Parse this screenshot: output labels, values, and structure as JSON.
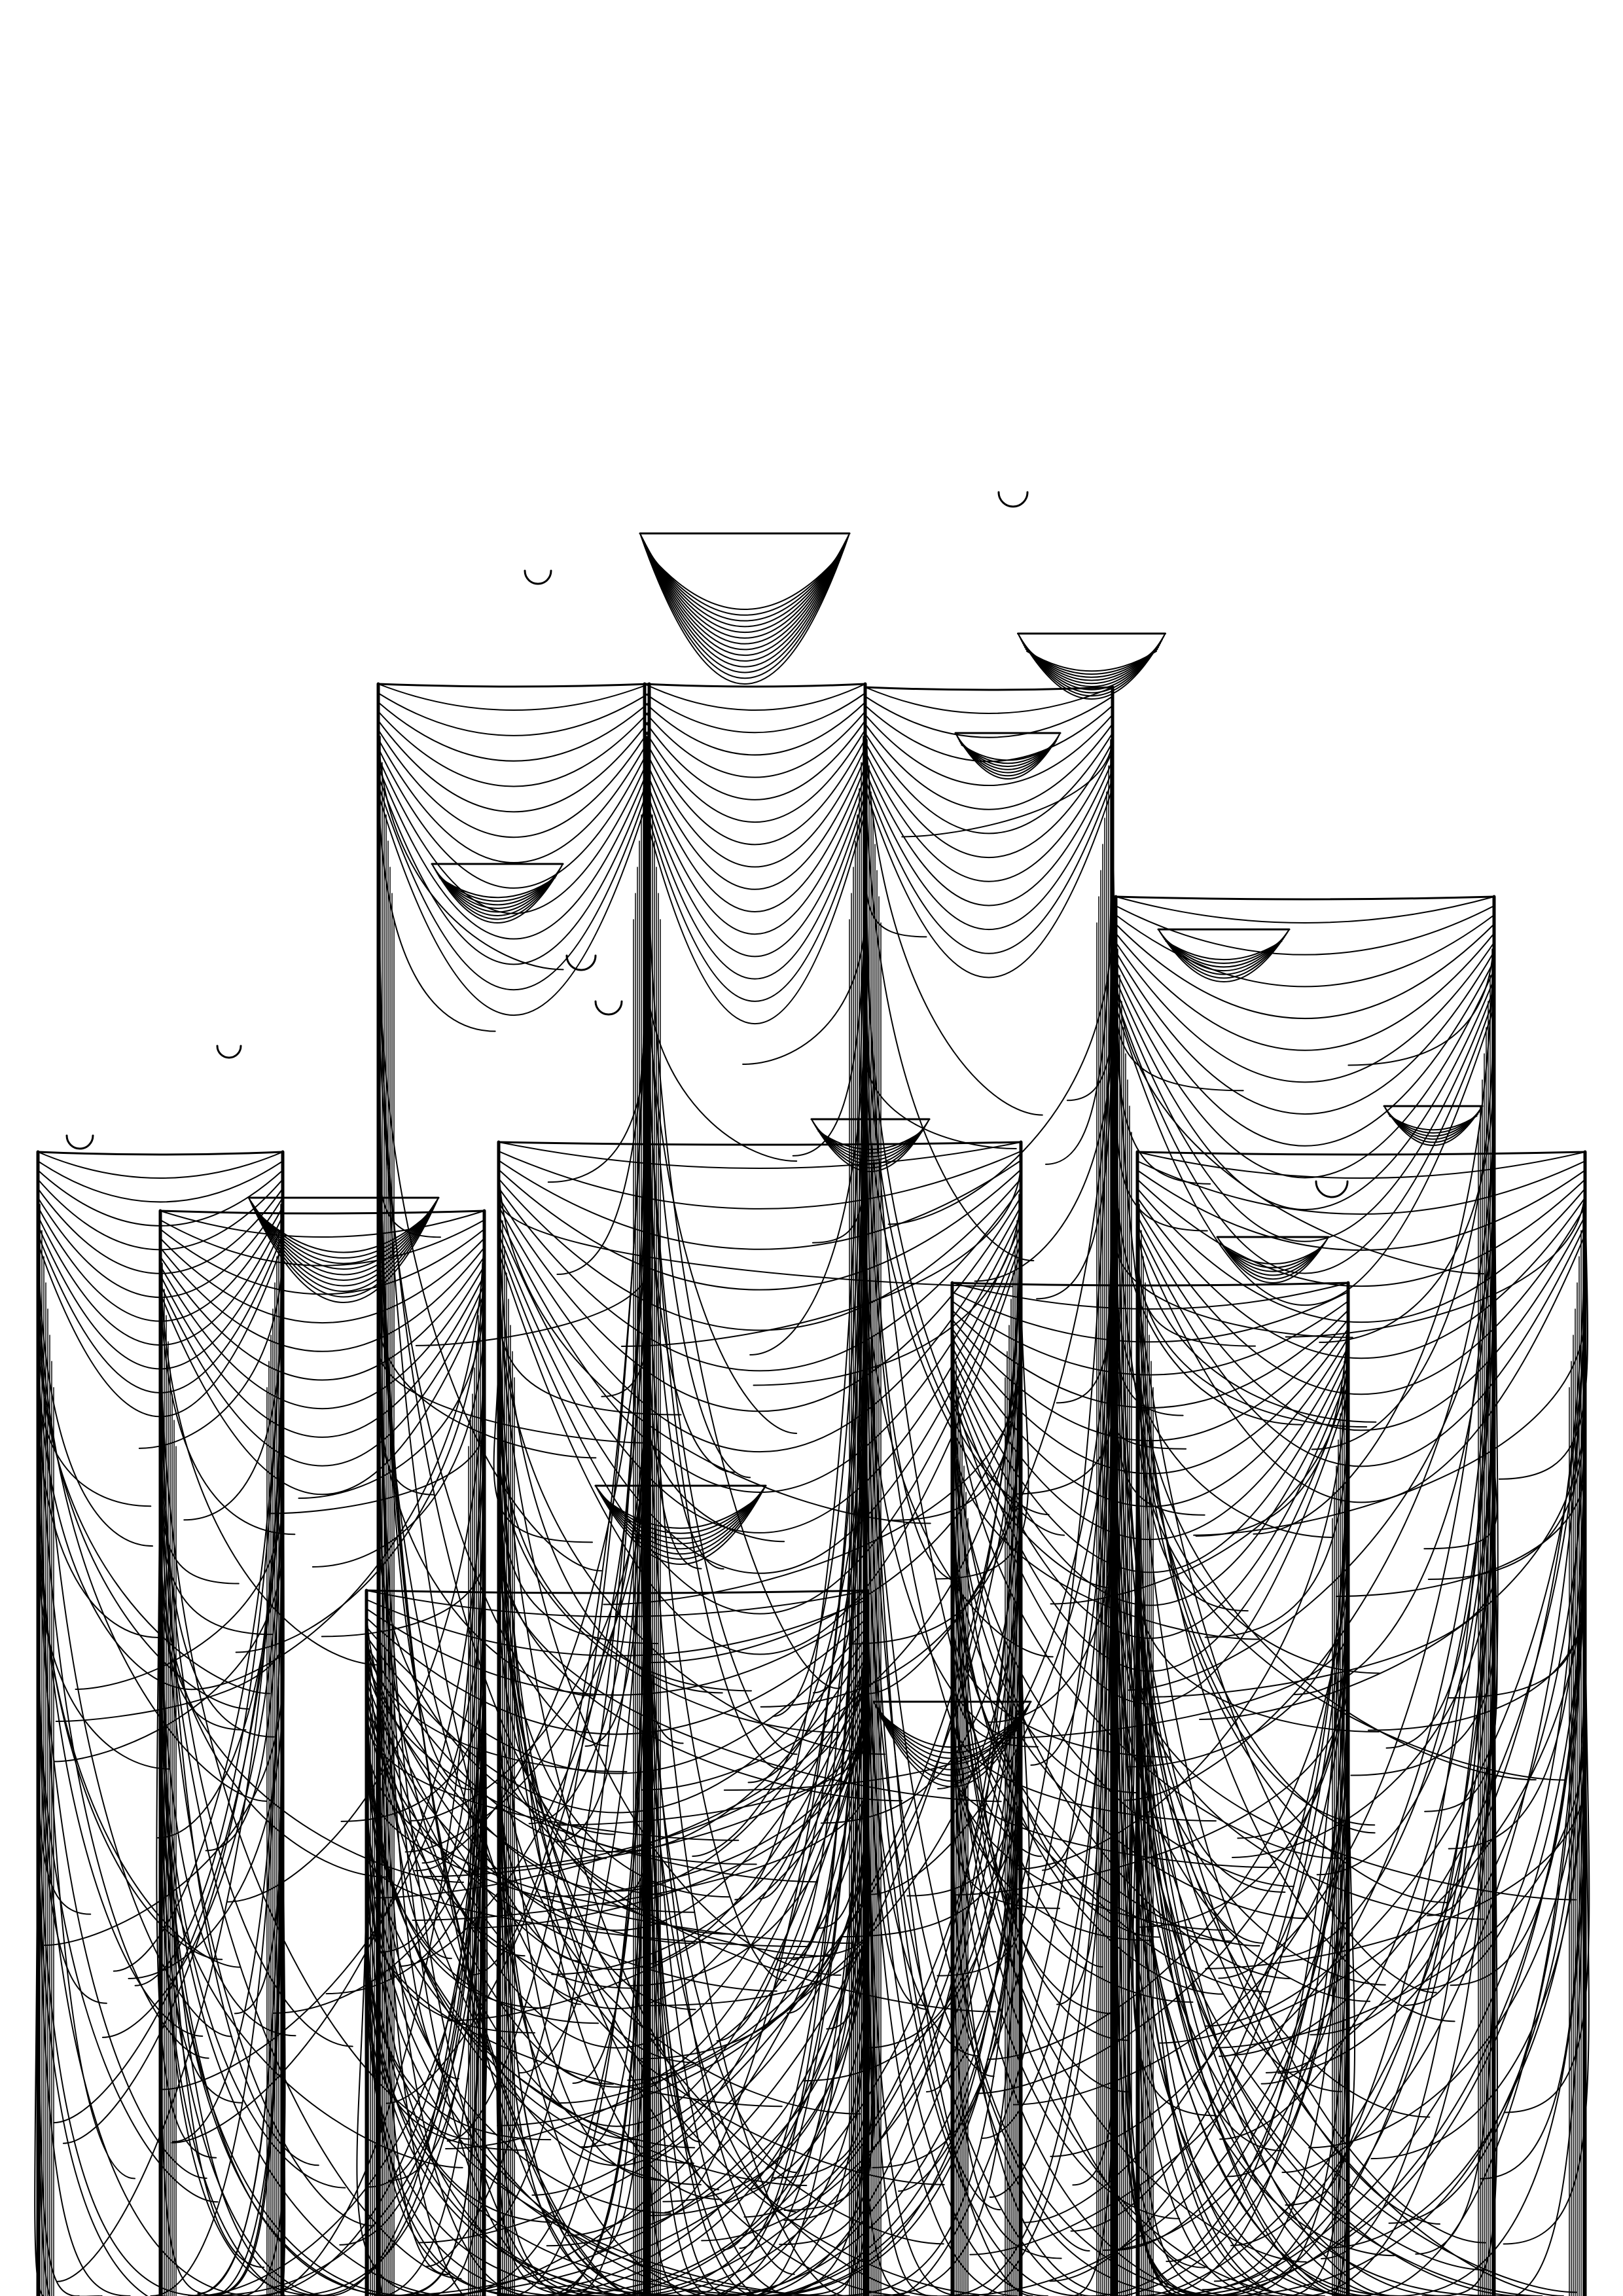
{
  "artwork": {
    "description_icon": "generative-line-art-icon",
    "colors": {
      "background": "#ffffff",
      "ink": "#000000"
    },
    "structures": [
      {
        "id": "tower-far-left",
        "kind": "tower"
      },
      {
        "id": "tower-left-mid",
        "kind": "tower"
      },
      {
        "id": "tower-left-back",
        "kind": "tower"
      },
      {
        "id": "tower-center-tall",
        "kind": "tower"
      },
      {
        "id": "tower-center-right",
        "kind": "tower"
      },
      {
        "id": "tower-right",
        "kind": "tower"
      },
      {
        "id": "tower-far-right",
        "kind": "tower"
      },
      {
        "id": "tower-front-left",
        "kind": "tower"
      },
      {
        "id": "tower-front-center",
        "kind": "tower"
      },
      {
        "id": "tower-front-right",
        "kind": "tower"
      }
    ]
  }
}
